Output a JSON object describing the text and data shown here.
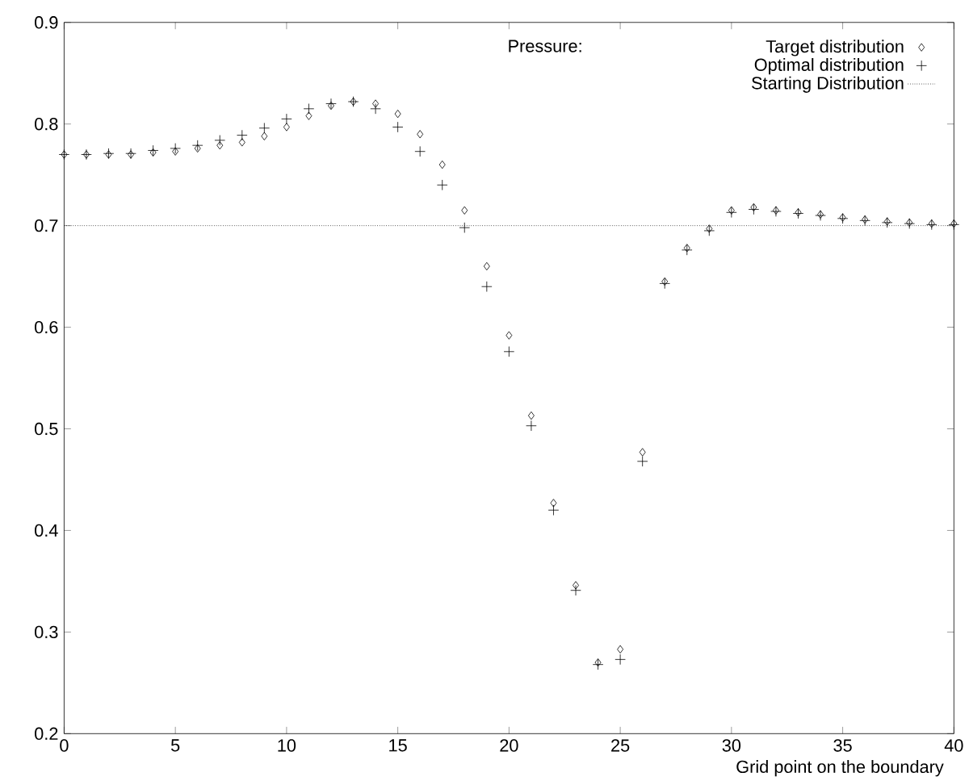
{
  "chart_data": {
    "type": "scatter",
    "xlabel": "Grid point on the boundary",
    "legend_title": "Pressure:",
    "x": [
      0,
      1,
      2,
      3,
      4,
      5,
      6,
      7,
      8,
      9,
      10,
      11,
      12,
      13,
      14,
      15,
      16,
      17,
      18,
      19,
      20,
      21,
      22,
      23,
      24,
      25,
      26,
      27,
      28,
      29,
      30,
      31,
      32,
      33,
      34,
      35,
      36,
      37,
      38,
      39,
      40
    ],
    "series": [
      {
        "name": "Target distribution",
        "color": "#000000",
        "marker": "diamond",
        "values": [
          0.77,
          0.77,
          0.77,
          0.77,
          0.772,
          0.773,
          0.776,
          0.779,
          0.782,
          0.788,
          0.797,
          0.808,
          0.818,
          0.822,
          0.82,
          0.81,
          0.79,
          0.76,
          0.715,
          0.66,
          0.592,
          0.513,
          0.427,
          0.346,
          0.27,
          0.283,
          0.477,
          0.645,
          0.678,
          0.697,
          0.715,
          0.718,
          0.715,
          0.713,
          0.711,
          0.708,
          0.706,
          0.704,
          0.703,
          0.702,
          0.702
        ]
      },
      {
        "name": "Optimal distribution",
        "color": "#000000",
        "marker": "cross",
        "values": [
          0.77,
          0.77,
          0.771,
          0.771,
          0.774,
          0.776,
          0.779,
          0.784,
          0.789,
          0.796,
          0.805,
          0.815,
          0.82,
          0.822,
          0.815,
          0.797,
          0.773,
          0.74,
          0.698,
          0.64,
          0.576,
          0.503,
          0.42,
          0.341,
          0.268,
          0.273,
          0.468,
          0.643,
          0.676,
          0.695,
          0.713,
          0.716,
          0.714,
          0.712,
          0.71,
          0.707,
          0.705,
          0.703,
          0.702,
          0.701,
          0.701
        ]
      },
      {
        "name": "Starting Distribution",
        "type": "line",
        "line_style": "dotted",
        "marker": "none",
        "color": "#000000",
        "x": [
          0,
          40
        ],
        "values": [
          0.7,
          0.7
        ]
      }
    ],
    "xlim": [
      0,
      40
    ],
    "ylim": [
      0.2,
      0.9
    ],
    "xticks": [
      0,
      5,
      10,
      15,
      20,
      25,
      30,
      35,
      40
    ],
    "yticks": [
      0.2,
      0.3,
      0.4,
      0.5,
      0.6,
      0.7,
      0.8,
      0.9
    ],
    "legend": "top right",
    "grid": false
  }
}
